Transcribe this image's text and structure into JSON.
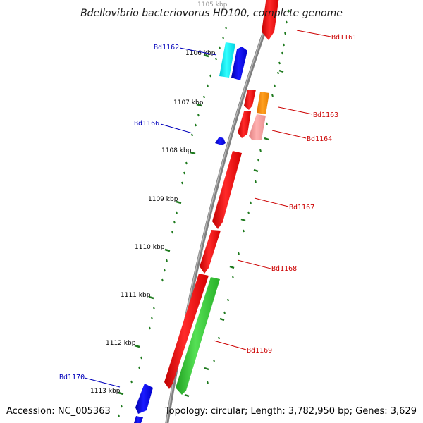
{
  "title": "Bdellovibrio bacteriovorus HD100, complete genome",
  "footer": {
    "accession": "Accession: NC_005363",
    "topology": "Topology: circular; Length: 3,782,950 bp; Genes: 3,629"
  },
  "colors": {
    "backbone": "#7f7f7f",
    "tick": "#1e7a1e",
    "label_forward": "#cc0000",
    "label_reverse": "#0000bb"
  },
  "kbp_ticks": [
    "1105 kbp",
    "1106 kbp",
    "1107 kbp",
    "1108 kbp",
    "1109 kbp",
    "1110 kbp",
    "1111 kbp",
    "1112 kbp",
    "1113 kbp"
  ],
  "gene_labels": [
    {
      "name": "Bd1161",
      "strand": "forward"
    },
    {
      "name": "Bd1162",
      "strand": "reverse"
    },
    {
      "name": "Bd1163",
      "strand": "forward"
    },
    {
      "name": "Bd1164",
      "strand": "forward"
    },
    {
      "name": "Bd1166",
      "strand": "reverse"
    },
    {
      "name": "Bd1167",
      "strand": "forward"
    },
    {
      "name": "Bd1168",
      "strand": "forward"
    },
    {
      "name": "Bd1169",
      "strand": "forward"
    },
    {
      "name": "Bd1170",
      "strand": "reverse"
    }
  ],
  "gene_colors": [
    "red",
    "cyan",
    "blue",
    "orange",
    "pink",
    "green"
  ]
}
